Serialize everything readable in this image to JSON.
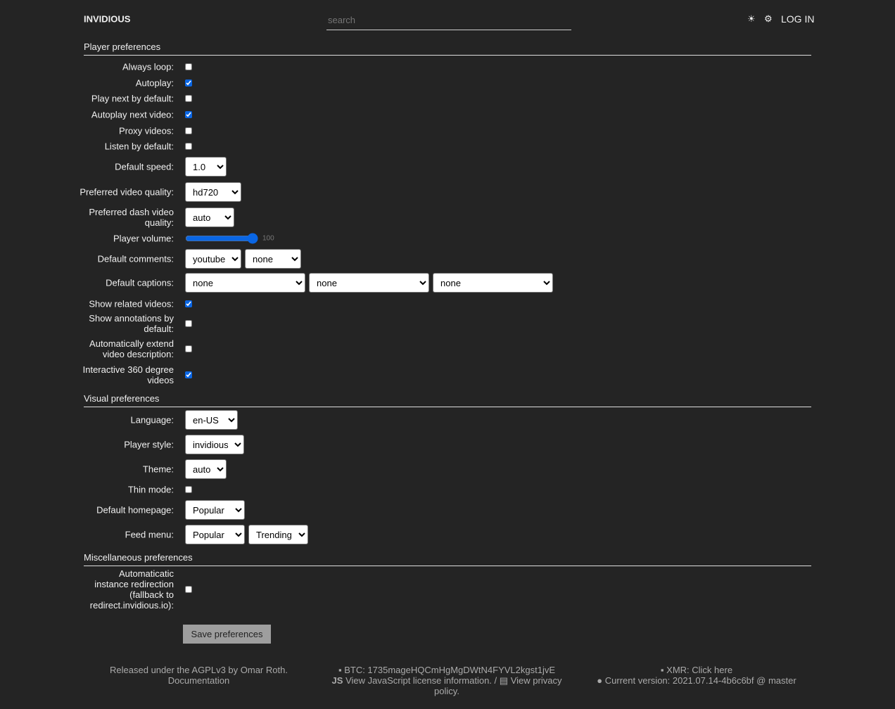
{
  "nav": {
    "brand": "INVIDIOUS",
    "search_placeholder": "search",
    "theme_icon": "sun-icon",
    "settings_icon": "gear-icon",
    "login": "LOG IN"
  },
  "player": {
    "title": "Player preferences",
    "always_loop": {
      "label": "Always loop:",
      "checked": false
    },
    "autoplay": {
      "label": "Autoplay:",
      "checked": true
    },
    "play_next": {
      "label": "Play next by default:",
      "checked": false
    },
    "autoplay_next": {
      "label": "Autoplay next video:",
      "checked": true
    },
    "proxy": {
      "label": "Proxy videos:",
      "checked": false
    },
    "listen": {
      "label": "Listen by default:",
      "checked": false
    },
    "speed": {
      "label": "Default speed:",
      "value": "1.0"
    },
    "quality": {
      "label": "Preferred video quality:",
      "value": "hd720"
    },
    "dash": {
      "label": "Preferred dash video quality:",
      "value": "auto"
    },
    "volume": {
      "label": "Player volume:",
      "value": 100
    },
    "comments": {
      "label": "Default comments:",
      "values": [
        "youtube",
        "none"
      ]
    },
    "captions": {
      "label": "Default captions:",
      "values": [
        "none",
        "none",
        "none"
      ]
    },
    "related": {
      "label": "Show related videos:",
      "checked": true
    },
    "annotations": {
      "label": "Show annotations by default:",
      "checked": false
    },
    "extend": {
      "label": "Automatically extend video description:",
      "checked": false
    },
    "vr": {
      "label": "Interactive 360 degree videos",
      "checked": true
    }
  },
  "visual": {
    "title": "Visual preferences",
    "language": {
      "label": "Language:",
      "value": "en-US"
    },
    "style": {
      "label": "Player style:",
      "value": "invidious"
    },
    "theme": {
      "label": "Theme:",
      "value": "auto"
    },
    "thin": {
      "label": "Thin mode:",
      "checked": false
    },
    "homepage": {
      "label": "Default homepage:",
      "value": "Popular"
    },
    "feed": {
      "label": "Feed menu:",
      "values": [
        "Popular",
        "Trending"
      ]
    }
  },
  "misc": {
    "title": "Miscellaneous preferences",
    "redirect": {
      "label": "Automaticatic instance redirection (fallback to redirect.invidious.io):",
      "checked": false
    }
  },
  "save": "Save preferences",
  "footer": {
    "released": "Released under the AGPLv3 by Omar Roth.",
    "docs": "Documentation",
    "btc": "BTC: 1735mageHQCmHgMgDWtN4FYVL2kgst1jvE",
    "js_icon": "JS",
    "js": "View JavaScript license information.",
    "sep": "/",
    "privacy": "View privacy policy.",
    "xmr": "XMR: Click here",
    "version": "Current version: 2021.07.14-4b6c6bf @ master"
  }
}
